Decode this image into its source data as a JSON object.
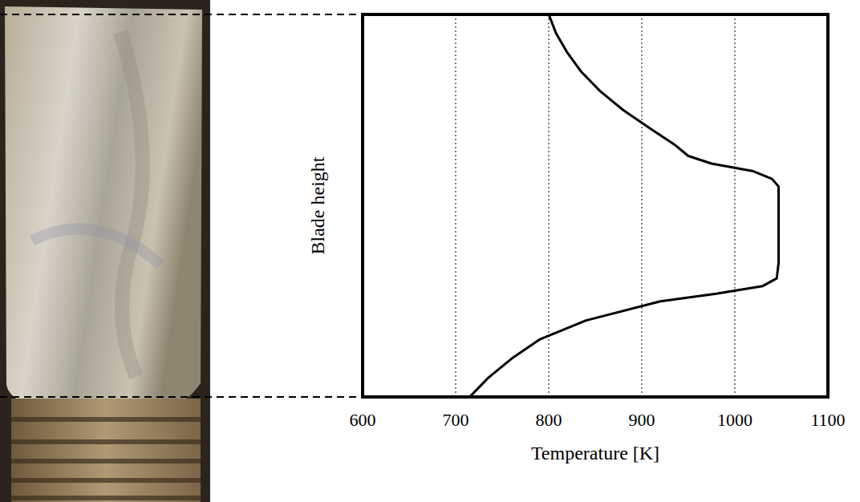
{
  "chart_data": {
    "type": "line",
    "x_label": "Temperature [K]",
    "y_label": "Blade height",
    "xlim": [
      600,
      1100
    ],
    "xticks": [
      600,
      700,
      800,
      900,
      1000,
      1100
    ],
    "ylim": [
      0,
      1
    ],
    "grid": true,
    "tick_labels": "x",
    "series": [
      {
        "color": "#000000",
        "line_style": "solid",
        "x": [
          715,
          735,
          760,
          790,
          840,
          920,
          980,
          1030,
          1045,
          1047,
          1047,
          1047,
          1047,
          1040,
          1020,
          975,
          950,
          935,
          910,
          880,
          855,
          835,
          820,
          808,
          800
        ],
        "values": [
          0,
          0.05,
          0.1,
          0.15,
          0.2,
          0.25,
          0.27,
          0.29,
          0.31,
          0.35,
          0.45,
          0.5,
          0.55,
          0.57,
          0.59,
          0.61,
          0.63,
          0.66,
          0.7,
          0.75,
          0.8,
          0.85,
          0.9,
          0.95,
          1.0
        ]
      }
    ]
  }
}
